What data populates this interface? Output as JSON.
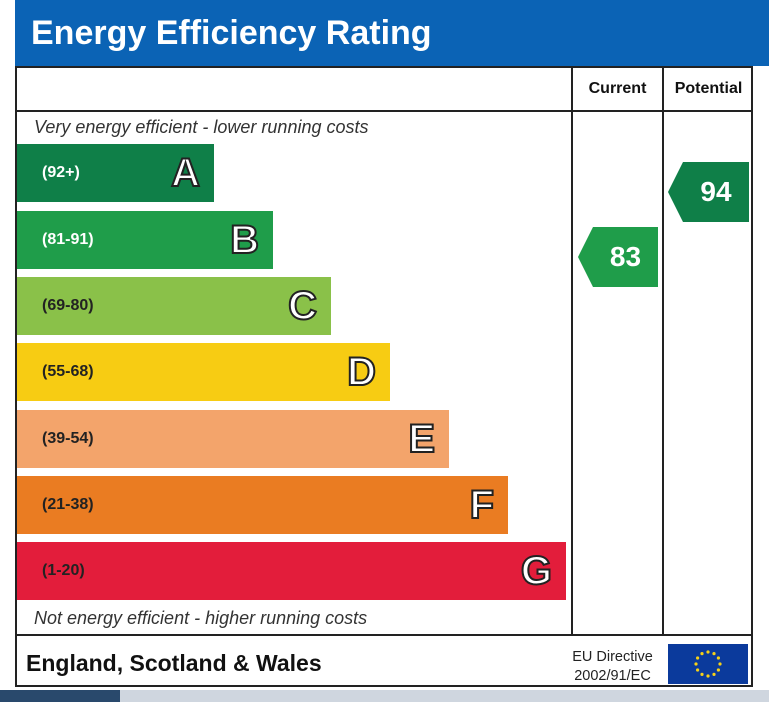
{
  "title": "Energy Efficiency Rating",
  "columns": {
    "current": "Current",
    "potential": "Potential"
  },
  "notes": {
    "top": "Very energy efficient - lower running costs",
    "bottom": "Not energy efficient - higher running costs"
  },
  "footer": {
    "region": "England, Scotland & Wales",
    "directive_line1": "EU Directive",
    "directive_line2": "2002/91/EC"
  },
  "colors": {
    "header": "#0b63b5",
    "band_a": "#0f7f48",
    "band_b": "#1f9d4a",
    "band_c": "#8ac149",
    "band_d": "#f7cc13",
    "band_e": "#f3a46b",
    "band_f": "#ea7c22",
    "band_g": "#e31d3b",
    "current_arrow": "#1f9d4a",
    "potential_arrow": "#0f7f48"
  },
  "chart_data": {
    "type": "bar",
    "categories": [
      "A",
      "B",
      "C",
      "D",
      "E",
      "F",
      "G"
    ],
    "ranges": [
      "(92+)",
      "(81-91)",
      "(69-80)",
      "(55-68)",
      "(39-54)",
      "(21-38)",
      "(1-20)"
    ],
    "current": 83,
    "potential": 94
  }
}
